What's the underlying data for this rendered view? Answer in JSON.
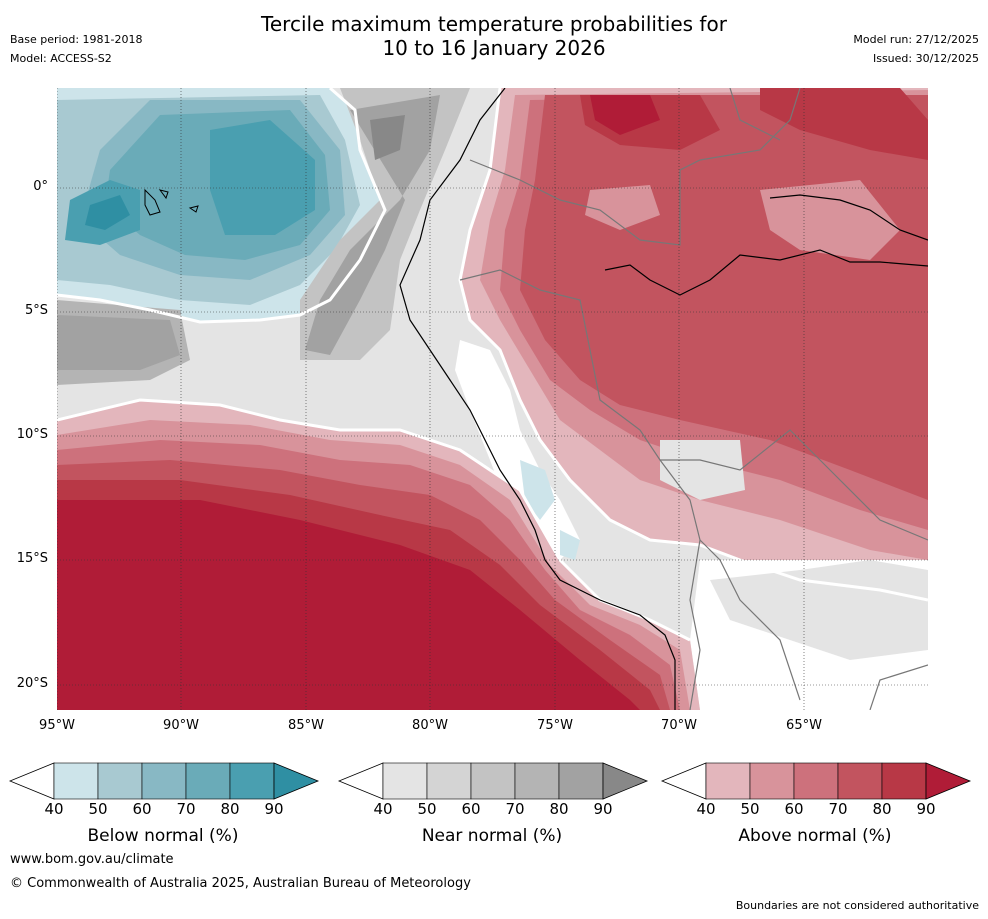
{
  "title_line1": "Tercile maximum temperature probabilities for",
  "title_line2": "10 to 16 January 2026",
  "base_period": "Base period: 1981-2018",
  "model": "Model: ACCESS-S2",
  "model_run": "Model run: 27/12/2025",
  "issued": "Issued: 30/12/2025",
  "lat_labels": [
    "0°",
    "5°S",
    "10°S",
    "15°S",
    "20°S"
  ],
  "lon_labels": [
    "95°W",
    "90°W",
    "85°W",
    "80°W",
    "75°W",
    "70°W",
    "65°W"
  ],
  "colorbars": [
    {
      "title": "Below normal (%)",
      "ticks": [
        "40",
        "50",
        "60",
        "70",
        "80",
        "90"
      ],
      "colors": [
        "#cde4ea",
        "#a8c9d1",
        "#88b8c4",
        "#6aabb8",
        "#4a9fb0",
        "#2f8fa3"
      ]
    },
    {
      "title": "Near normal (%)",
      "ticks": [
        "40",
        "50",
        "60",
        "70",
        "80",
        "90"
      ],
      "colors": [
        "#e4e4e4",
        "#d4d4d4",
        "#c3c3c3",
        "#b4b4b4",
        "#a2a2a2",
        "#888888"
      ]
    },
    {
      "title": "Above normal (%)",
      "ticks": [
        "40",
        "50",
        "60",
        "70",
        "80",
        "90"
      ],
      "colors": [
        "#e3b6bc",
        "#d8939b",
        "#cd717c",
        "#c2545f",
        "#b83846",
        "#b01c37"
      ]
    }
  ],
  "website": "www.bom.gov.au/climate",
  "copyright": "© Commonwealth of Australia 2025, Australian Bureau of Meteorology",
  "disclaimer": "Boundaries are not considered authoritative"
}
